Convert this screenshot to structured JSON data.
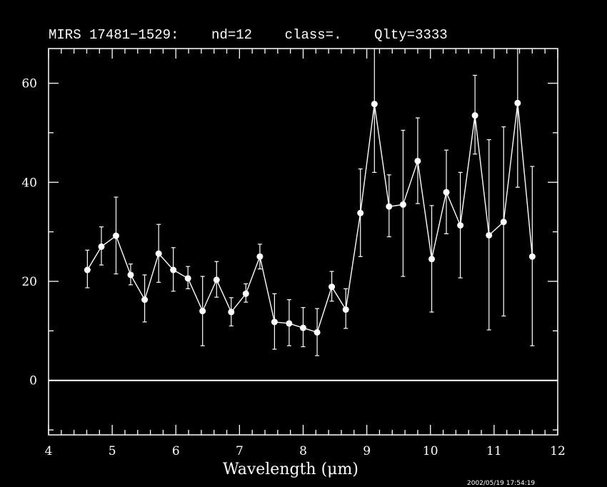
{
  "chart_data": {
    "type": "scatter",
    "title": "MIRS 17481−1529:    nd=12    class=.    Qlty=3333",
    "xlabel": "Wavelength (μm)",
    "ylabel": "",
    "xlim": [
      4,
      12
    ],
    "ylim": [
      -11,
      67
    ],
    "xticks": [
      4,
      5,
      6,
      7,
      8,
      9,
      10,
      11,
      12
    ],
    "yticks": [
      0,
      20,
      40,
      60
    ],
    "zero_line": 0,
    "grid": false,
    "timestamp": "2002/05/19 17:54:19",
    "series": [
      {
        "points": [
          {
            "x": 4.61,
            "y": 22.3,
            "err_lo": 18.7,
            "err_hi": 26.3
          },
          {
            "x": 4.83,
            "y": 27.0,
            "err_lo": 23.3,
            "err_hi": 31.0
          },
          {
            "x": 5.06,
            "y": 29.2,
            "err_lo": 21.5,
            "err_hi": 37.0
          },
          {
            "x": 5.29,
            "y": 21.3,
            "err_lo": 19.3,
            "err_hi": 23.5
          },
          {
            "x": 5.51,
            "y": 16.3,
            "err_lo": 11.8,
            "err_hi": 21.3
          },
          {
            "x": 5.73,
            "y": 25.6,
            "err_lo": 19.8,
            "err_hi": 31.5
          },
          {
            "x": 5.96,
            "y": 22.3,
            "err_lo": 18.0,
            "err_hi": 26.8
          },
          {
            "x": 6.19,
            "y": 20.6,
            "err_lo": 18.5,
            "err_hi": 23.0
          },
          {
            "x": 6.42,
            "y": 14.0,
            "err_lo": 7.0,
            "err_hi": 21.0
          },
          {
            "x": 6.64,
            "y": 20.3,
            "err_lo": 16.8,
            "err_hi": 24.0
          },
          {
            "x": 6.87,
            "y": 13.8,
            "err_lo": 11.0,
            "err_hi": 16.7
          },
          {
            "x": 7.1,
            "y": 17.5,
            "err_lo": 15.8,
            "err_hi": 19.5
          },
          {
            "x": 7.32,
            "y": 25.0,
            "err_lo": 22.5,
            "err_hi": 27.5
          },
          {
            "x": 7.55,
            "y": 11.8,
            "err_lo": 6.3,
            "err_hi": 17.5
          },
          {
            "x": 7.78,
            "y": 11.5,
            "err_lo": 7.0,
            "err_hi": 16.3
          },
          {
            "x": 8.0,
            "y": 10.6,
            "err_lo": 6.8,
            "err_hi": 14.7
          },
          {
            "x": 8.22,
            "y": 9.7,
            "err_lo": 5.0,
            "err_hi": 14.5
          },
          {
            "x": 8.45,
            "y": 18.9,
            "err_lo": 16.0,
            "err_hi": 22.0
          },
          {
            "x": 8.67,
            "y": 14.3,
            "err_lo": 10.5,
            "err_hi": 18.5
          },
          {
            "x": 8.9,
            "y": 33.8,
            "err_lo": 25.0,
            "err_hi": 42.7
          },
          {
            "x": 9.12,
            "y": 55.8,
            "err_lo": 42.0,
            "err_hi": 67.0
          },
          {
            "x": 9.35,
            "y": 35.1,
            "err_lo": 29.0,
            "err_hi": 41.5
          },
          {
            "x": 9.57,
            "y": 35.5,
            "err_lo": 21.0,
            "err_hi": 50.5
          },
          {
            "x": 9.8,
            "y": 44.3,
            "err_lo": 35.7,
            "err_hi": 53.0
          },
          {
            "x": 10.02,
            "y": 24.5,
            "err_lo": 13.8,
            "err_hi": 35.3
          },
          {
            "x": 10.25,
            "y": 38.0,
            "err_lo": 29.6,
            "err_hi": 46.5
          },
          {
            "x": 10.47,
            "y": 31.3,
            "err_lo": 20.7,
            "err_hi": 42.0
          },
          {
            "x": 10.7,
            "y": 53.5,
            "err_lo": 45.7,
            "err_hi": 61.6
          },
          {
            "x": 10.92,
            "y": 29.3,
            "err_lo": 10.2,
            "err_hi": 48.6
          },
          {
            "x": 11.15,
            "y": 32.0,
            "err_lo": 13.0,
            "err_hi": 51.2
          },
          {
            "x": 11.37,
            "y": 56.0,
            "err_lo": 39.0,
            "err_hi": 67.0
          },
          {
            "x": 11.6,
            "y": 25.0,
            "err_lo": 7.0,
            "err_hi": 43.2
          }
        ]
      }
    ]
  }
}
